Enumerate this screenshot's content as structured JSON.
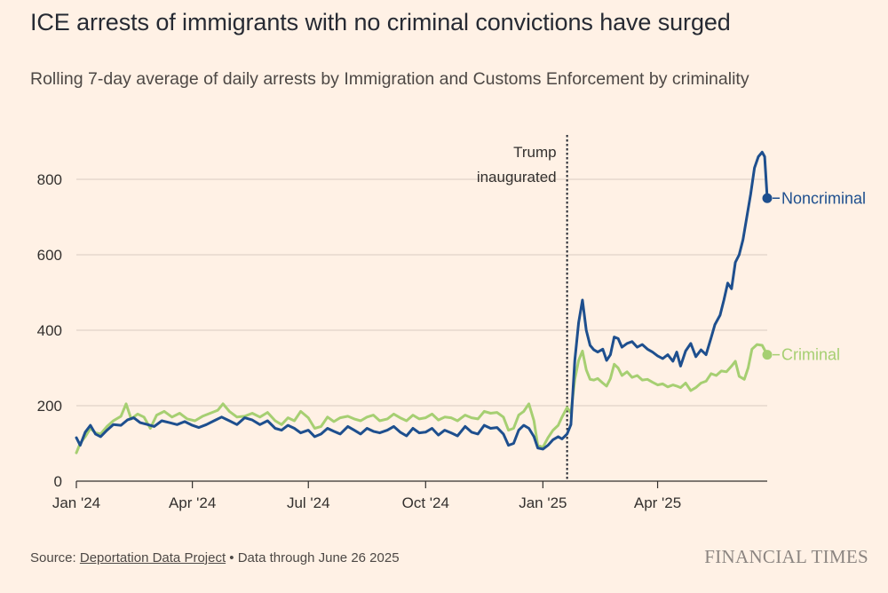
{
  "title": "ICE arrests of immigrants with no criminal convictions have surged",
  "subtitle": "Rolling 7-day average of daily arrests by Immigration and Customs Enforcement by criminality",
  "source": {
    "prefix": "Source: ",
    "link_text": "Deportation Data Project",
    "suffix": " • Data through June 26 2025"
  },
  "brand": "FINANCIAL TIMES",
  "colors": {
    "background": "#fff1e5",
    "noncriminal": "#1e4f8e",
    "criminal": "#a6cf72",
    "grid": "#d9ccc1",
    "text": "#33302e"
  },
  "chart_data": {
    "type": "line",
    "title": "ICE arrests of immigrants with no criminal convictions have surged",
    "xlabel": "",
    "ylabel": "",
    "ylim": [
      0,
      900
    ],
    "xlim": [
      "2024-01-01",
      "2025-06-26"
    ],
    "yticks": [
      0,
      200,
      400,
      600,
      800
    ],
    "xticks": [
      {
        "date": "2024-01-01",
        "label": "Jan '24"
      },
      {
        "date": "2024-04-01",
        "label": "Apr '24"
      },
      {
        "date": "2024-07-01",
        "label": "Jul '24"
      },
      {
        "date": "2024-10-01",
        "label": "Oct '24"
      },
      {
        "date": "2025-01-01",
        "label": "Jan '25"
      },
      {
        "date": "2025-04-01",
        "label": "Apr '25"
      }
    ],
    "annotation": {
      "date": "2025-01-20",
      "lines": [
        "Trump",
        "inaugurated"
      ]
    },
    "series": [
      {
        "name": "Noncriminal",
        "color": "#1e4f8e",
        "points": [
          [
            "2024-01-01",
            115
          ],
          [
            "2024-01-04",
            95
          ],
          [
            "2024-01-08",
            130
          ],
          [
            "2024-01-12",
            148
          ],
          [
            "2024-01-16",
            125
          ],
          [
            "2024-01-20",
            118
          ],
          [
            "2024-01-25",
            135
          ],
          [
            "2024-01-30",
            150
          ],
          [
            "2024-02-05",
            148
          ],
          [
            "2024-02-10",
            162
          ],
          [
            "2024-02-15",
            168
          ],
          [
            "2024-02-20",
            155
          ],
          [
            "2024-02-26",
            150
          ],
          [
            "2024-03-02",
            145
          ],
          [
            "2024-03-08",
            160
          ],
          [
            "2024-03-14",
            155
          ],
          [
            "2024-03-20",
            150
          ],
          [
            "2024-03-26",
            158
          ],
          [
            "2024-04-01",
            148
          ],
          [
            "2024-04-06",
            142
          ],
          [
            "2024-04-12",
            150
          ],
          [
            "2024-04-18",
            160
          ],
          [
            "2024-04-24",
            170
          ],
          [
            "2024-04-30",
            160
          ],
          [
            "2024-05-06",
            150
          ],
          [
            "2024-05-12",
            168
          ],
          [
            "2024-05-18",
            162
          ],
          [
            "2024-05-24",
            150
          ],
          [
            "2024-05-30",
            160
          ],
          [
            "2024-06-05",
            140
          ],
          [
            "2024-06-10",
            135
          ],
          [
            "2024-06-15",
            148
          ],
          [
            "2024-06-20",
            140
          ],
          [
            "2024-06-25",
            128
          ],
          [
            "2024-07-01",
            135
          ],
          [
            "2024-07-06",
            118
          ],
          [
            "2024-07-11",
            125
          ],
          [
            "2024-07-16",
            140
          ],
          [
            "2024-07-21",
            132
          ],
          [
            "2024-07-26",
            125
          ],
          [
            "2024-08-01",
            145
          ],
          [
            "2024-08-06",
            135
          ],
          [
            "2024-08-11",
            125
          ],
          [
            "2024-08-16",
            140
          ],
          [
            "2024-08-21",
            132
          ],
          [
            "2024-08-26",
            128
          ],
          [
            "2024-09-01",
            135
          ],
          [
            "2024-09-06",
            145
          ],
          [
            "2024-09-11",
            130
          ],
          [
            "2024-09-16",
            120
          ],
          [
            "2024-09-21",
            140
          ],
          [
            "2024-09-26",
            128
          ],
          [
            "2024-10-01",
            130
          ],
          [
            "2024-10-06",
            140
          ],
          [
            "2024-10-11",
            122
          ],
          [
            "2024-10-16",
            135
          ],
          [
            "2024-10-21",
            128
          ],
          [
            "2024-10-26",
            120
          ],
          [
            "2024-11-01",
            145
          ],
          [
            "2024-11-06",
            130
          ],
          [
            "2024-11-11",
            125
          ],
          [
            "2024-11-16",
            148
          ],
          [
            "2024-11-21",
            140
          ],
          [
            "2024-11-26",
            142
          ],
          [
            "2024-12-01",
            125
          ],
          [
            "2024-12-05",
            95
          ],
          [
            "2024-12-09",
            100
          ],
          [
            "2024-12-13",
            135
          ],
          [
            "2024-12-17",
            148
          ],
          [
            "2024-12-21",
            140
          ],
          [
            "2024-12-25",
            118
          ],
          [
            "2024-12-28",
            88
          ],
          [
            "2025-01-01",
            85
          ],
          [
            "2025-01-05",
            95
          ],
          [
            "2025-01-09",
            110
          ],
          [
            "2025-01-13",
            118
          ],
          [
            "2025-01-16",
            112
          ],
          [
            "2025-01-20",
            125
          ],
          [
            "2025-01-23",
            150
          ],
          [
            "2025-01-26",
            320
          ],
          [
            "2025-01-29",
            420
          ],
          [
            "2025-02-01",
            480
          ],
          [
            "2025-02-04",
            400
          ],
          [
            "2025-02-07",
            360
          ],
          [
            "2025-02-10",
            348
          ],
          [
            "2025-02-13",
            342
          ],
          [
            "2025-02-17",
            350
          ],
          [
            "2025-02-20",
            320
          ],
          [
            "2025-02-23",
            335
          ],
          [
            "2025-02-26",
            382
          ],
          [
            "2025-03-01",
            378
          ],
          [
            "2025-03-04",
            355
          ],
          [
            "2025-03-08",
            365
          ],
          [
            "2025-03-12",
            370
          ],
          [
            "2025-03-16",
            355
          ],
          [
            "2025-03-20",
            362
          ],
          [
            "2025-03-24",
            350
          ],
          [
            "2025-03-28",
            342
          ],
          [
            "2025-04-01",
            332
          ],
          [
            "2025-04-05",
            325
          ],
          [
            "2025-04-09",
            335
          ],
          [
            "2025-04-13",
            318
          ],
          [
            "2025-04-16",
            342
          ],
          [
            "2025-04-19",
            305
          ],
          [
            "2025-04-23",
            345
          ],
          [
            "2025-04-27",
            365
          ],
          [
            "2025-05-01",
            330
          ],
          [
            "2025-05-05",
            348
          ],
          [
            "2025-05-09",
            335
          ],
          [
            "2025-05-13",
            380
          ],
          [
            "2025-05-16",
            415
          ],
          [
            "2025-05-20",
            440
          ],
          [
            "2025-05-23",
            480
          ],
          [
            "2025-05-26",
            525
          ],
          [
            "2025-05-29",
            510
          ],
          [
            "2025-06-01",
            580
          ],
          [
            "2025-06-04",
            600
          ],
          [
            "2025-06-07",
            640
          ],
          [
            "2025-06-10",
            700
          ],
          [
            "2025-06-13",
            760
          ],
          [
            "2025-06-16",
            830
          ],
          [
            "2025-06-19",
            860
          ],
          [
            "2025-06-22",
            872
          ],
          [
            "2025-06-24",
            860
          ],
          [
            "2025-06-26",
            750
          ]
        ]
      },
      {
        "name": "Criminal",
        "color": "#a6cf72",
        "points": [
          [
            "2024-01-01",
            75
          ],
          [
            "2024-01-04",
            100
          ],
          [
            "2024-01-08",
            118
          ],
          [
            "2024-01-12",
            140
          ],
          [
            "2024-01-16",
            128
          ],
          [
            "2024-01-20",
            125
          ],
          [
            "2024-01-25",
            145
          ],
          [
            "2024-01-30",
            160
          ],
          [
            "2024-02-05",
            172
          ],
          [
            "2024-02-09",
            205
          ],
          [
            "2024-02-13",
            165
          ],
          [
            "2024-02-18",
            178
          ],
          [
            "2024-02-23",
            170
          ],
          [
            "2024-02-28",
            140
          ],
          [
            "2024-03-04",
            175
          ],
          [
            "2024-03-10",
            185
          ],
          [
            "2024-03-16",
            170
          ],
          [
            "2024-03-22",
            180
          ],
          [
            "2024-03-28",
            165
          ],
          [
            "2024-04-03",
            160
          ],
          [
            "2024-04-09",
            172
          ],
          [
            "2024-04-15",
            180
          ],
          [
            "2024-04-21",
            188
          ],
          [
            "2024-04-25",
            205
          ],
          [
            "2024-04-30",
            185
          ],
          [
            "2024-05-06",
            170
          ],
          [
            "2024-05-12",
            172
          ],
          [
            "2024-05-18",
            180
          ],
          [
            "2024-05-24",
            170
          ],
          [
            "2024-05-30",
            182
          ],
          [
            "2024-06-05",
            160
          ],
          [
            "2024-06-10",
            150
          ],
          [
            "2024-06-15",
            168
          ],
          [
            "2024-06-20",
            160
          ],
          [
            "2024-06-25",
            185
          ],
          [
            "2024-07-01",
            168
          ],
          [
            "2024-07-06",
            140
          ],
          [
            "2024-07-11",
            145
          ],
          [
            "2024-07-16",
            170
          ],
          [
            "2024-07-21",
            158
          ],
          [
            "2024-07-26",
            168
          ],
          [
            "2024-08-01",
            172
          ],
          [
            "2024-08-06",
            165
          ],
          [
            "2024-08-11",
            160
          ],
          [
            "2024-08-16",
            170
          ],
          [
            "2024-08-21",
            175
          ],
          [
            "2024-08-26",
            160
          ],
          [
            "2024-09-01",
            165
          ],
          [
            "2024-09-06",
            178
          ],
          [
            "2024-09-11",
            168
          ],
          [
            "2024-09-16",
            160
          ],
          [
            "2024-09-21",
            175
          ],
          [
            "2024-09-26",
            165
          ],
          [
            "2024-10-01",
            168
          ],
          [
            "2024-10-06",
            178
          ],
          [
            "2024-10-11",
            162
          ],
          [
            "2024-10-16",
            170
          ],
          [
            "2024-10-21",
            168
          ],
          [
            "2024-10-26",
            160
          ],
          [
            "2024-11-01",
            175
          ],
          [
            "2024-11-06",
            168
          ],
          [
            "2024-11-11",
            165
          ],
          [
            "2024-11-16",
            185
          ],
          [
            "2024-11-21",
            180
          ],
          [
            "2024-11-26",
            182
          ],
          [
            "2024-12-01",
            170
          ],
          [
            "2024-12-05",
            135
          ],
          [
            "2024-12-09",
            140
          ],
          [
            "2024-12-13",
            175
          ],
          [
            "2024-12-17",
            185
          ],
          [
            "2024-12-21",
            205
          ],
          [
            "2024-12-25",
            160
          ],
          [
            "2024-12-28",
            95
          ],
          [
            "2025-01-01",
            90
          ],
          [
            "2025-01-05",
            115
          ],
          [
            "2025-01-09",
            135
          ],
          [
            "2025-01-13",
            148
          ],
          [
            "2025-01-16",
            170
          ],
          [
            "2025-01-20",
            195
          ],
          [
            "2025-01-23",
            180
          ],
          [
            "2025-01-26",
            270
          ],
          [
            "2025-01-29",
            320
          ],
          [
            "2025-02-01",
            345
          ],
          [
            "2025-02-04",
            295
          ],
          [
            "2025-02-07",
            270
          ],
          [
            "2025-02-10",
            268
          ],
          [
            "2025-02-13",
            272
          ],
          [
            "2025-02-17",
            260
          ],
          [
            "2025-02-20",
            252
          ],
          [
            "2025-02-23",
            272
          ],
          [
            "2025-02-26",
            310
          ],
          [
            "2025-03-01",
            300
          ],
          [
            "2025-03-04",
            280
          ],
          [
            "2025-03-08",
            290
          ],
          [
            "2025-03-12",
            275
          ],
          [
            "2025-03-16",
            280
          ],
          [
            "2025-03-20",
            268
          ],
          [
            "2025-03-24",
            270
          ],
          [
            "2025-03-28",
            262
          ],
          [
            "2025-04-01",
            255
          ],
          [
            "2025-04-05",
            258
          ],
          [
            "2025-04-09",
            250
          ],
          [
            "2025-04-13",
            255
          ],
          [
            "2025-04-16",
            252
          ],
          [
            "2025-04-19",
            248
          ],
          [
            "2025-04-23",
            260
          ],
          [
            "2025-04-27",
            240
          ],
          [
            "2025-05-01",
            248
          ],
          [
            "2025-05-05",
            260
          ],
          [
            "2025-05-09",
            265
          ],
          [
            "2025-05-13",
            285
          ],
          [
            "2025-05-17",
            280
          ],
          [
            "2025-05-21",
            292
          ],
          [
            "2025-05-25",
            290
          ],
          [
            "2025-05-29",
            305
          ],
          [
            "2025-06-01",
            318
          ],
          [
            "2025-06-04",
            278
          ],
          [
            "2025-06-08",
            270
          ],
          [
            "2025-06-11",
            300
          ],
          [
            "2025-06-14",
            350
          ],
          [
            "2025-06-18",
            362
          ],
          [
            "2025-06-22",
            360
          ],
          [
            "2025-06-26",
            335
          ]
        ]
      }
    ]
  }
}
